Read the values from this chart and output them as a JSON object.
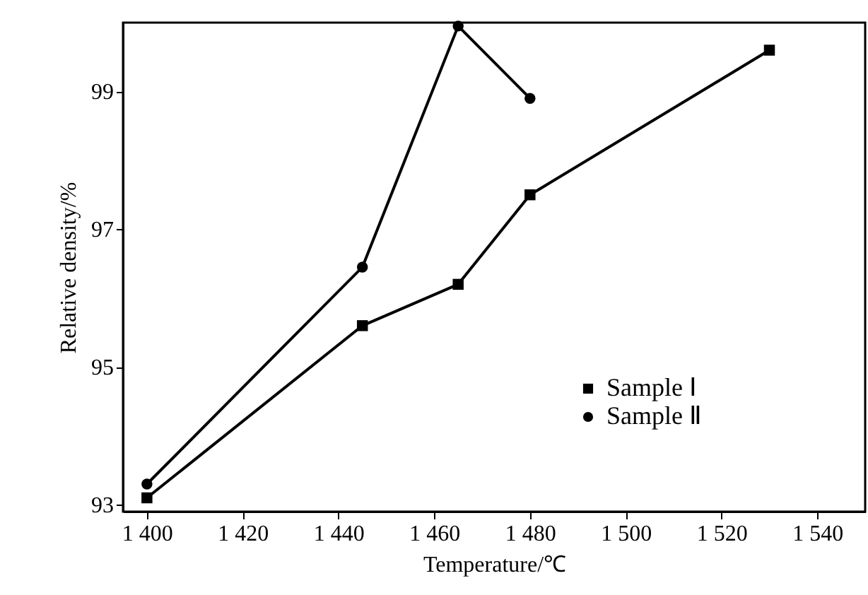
{
  "chart_data": {
    "type": "line",
    "xlabel": "Temperature/℃",
    "ylabel": "Relative density/%",
    "xlim": [
      1395,
      1550
    ],
    "ylim": [
      92.9,
      100
    ],
    "xticks": [
      {
        "value": 1400,
        "label": "1 400"
      },
      {
        "value": 1420,
        "label": "1 420"
      },
      {
        "value": 1440,
        "label": "1 440"
      },
      {
        "value": 1460,
        "label": "1 460"
      },
      {
        "value": 1480,
        "label": "1 480"
      },
      {
        "value": 1500,
        "label": "1 500"
      },
      {
        "value": 1520,
        "label": "1 520"
      },
      {
        "value": 1540,
        "label": "1 540"
      }
    ],
    "yticks": [
      93,
      95,
      97,
      99
    ],
    "grid": false,
    "legend": "bottom right",
    "line_style": "solid",
    "series": [
      {
        "name": "Sample Ⅰ",
        "color": "#000000",
        "marker": "square",
        "x": [
          1400,
          1445,
          1465,
          1480,
          1530
        ],
        "values": [
          93.1,
          95.6,
          96.2,
          97.5,
          99.6
        ]
      },
      {
        "name": "Sample Ⅱ",
        "color": "#000000",
        "marker": "circle",
        "x": [
          1400,
          1445,
          1465,
          1480
        ],
        "values": [
          93.3,
          96.45,
          99.95,
          98.9
        ]
      }
    ]
  }
}
